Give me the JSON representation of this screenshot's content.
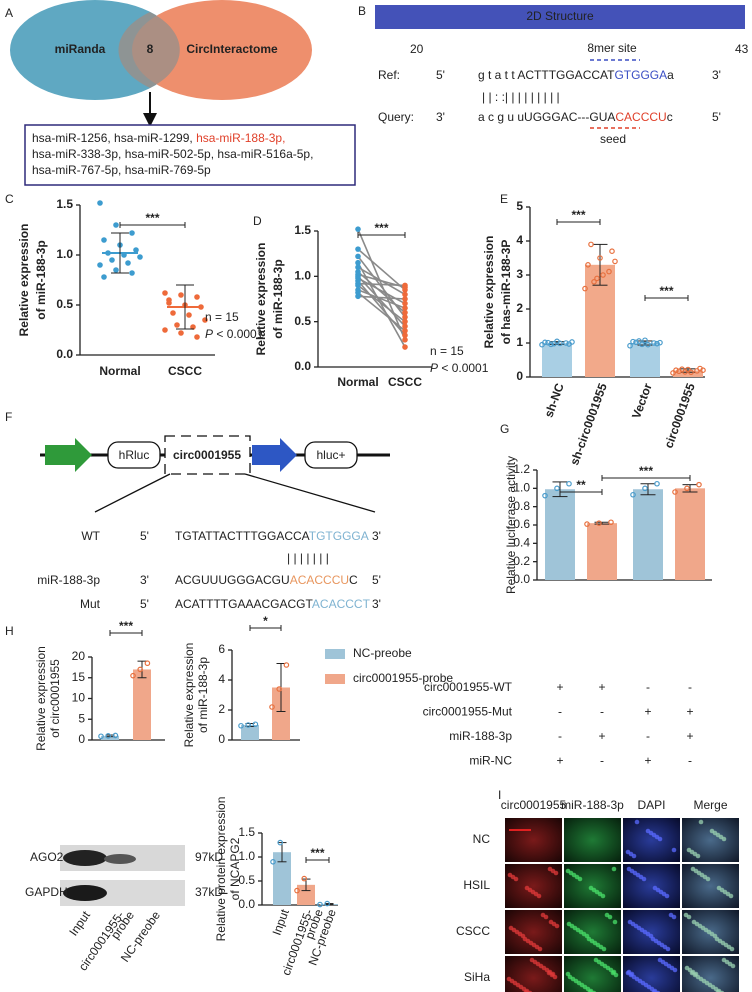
{
  "panel_labels": [
    "A",
    "B",
    "C",
    "D",
    "E",
    "F",
    "G",
    "H",
    "I"
  ],
  "panel_a": {
    "left": "miRanda",
    "overlap": "8",
    "right": "CircInteractome",
    "list": [
      [
        {
          "text": "hsa-miR-1256, hsa-miR-1299, "
        },
        {
          "text": "hsa-miR-188-3p,",
          "color": "#e0402a"
        }
      ],
      [
        {
          "text": "hsa-miR-338-3p, hsa-miR-502-5p, hsa-miR-516a-5p,"
        }
      ],
      [
        {
          "text": "hsa-miR-767-5p, hsa-miR-769-5p"
        }
      ]
    ]
  },
  "panel_b": {
    "title": "2D Structure",
    "start": "20",
    "end": "43",
    "site": "8mer site",
    "ref": {
      "label": "Ref:",
      "left": "5'",
      "right": "3'",
      "segments": [
        {
          "text": "g t a t t ACTTTGGACCAT"
        },
        {
          "text": "GTGGGA",
          "color": "#3b4fc4"
        },
        {
          "text": "a"
        }
      ]
    },
    "pairs": "|  |  :  :|          | | | | | | | |",
    "query": {
      "label": "Query:",
      "left": "3'",
      "right": "5'",
      "segments": [
        {
          "text": "a c g u uUGGGAC---GUA"
        },
        {
          "text": "CACCCU",
          "color": "#e0402a"
        },
        {
          "text": "c"
        }
      ]
    },
    "seed": "seed"
  },
  "panel_f": {
    "elements": [
      "hRluc",
      "circ0001955",
      "hluc+"
    ],
    "rows": [
      {
        "label": "WT",
        "left": "5'",
        "right": "3'",
        "segments": [
          {
            "text": "TGTATTACTTTGGACCA"
          },
          {
            "text": "TGTGGGA",
            "color": "#7fb3d1"
          }
        ]
      },
      {
        "label": "miR-188-3p",
        "left": "3'",
        "right": "5'",
        "segments": [
          {
            "text": "ACGUUUGGGACGU"
          },
          {
            "text": "ACACCCU",
            "color": "#e8965e"
          },
          {
            "text": "C"
          }
        ]
      },
      {
        "label": "Mut",
        "left": "5'",
        "right": "3'",
        "segments": [
          {
            "text": "ACATTTTGAAACGACGT"
          },
          {
            "text": "ACACCCT",
            "color": "#7fb3d1"
          }
        ]
      }
    ],
    "pairs": "| | | | | | |"
  },
  "panel_g_table": [
    {
      "label": "circ0001955-WT",
      "signs": [
        "+",
        "+",
        "-",
        "-"
      ]
    },
    {
      "label": "circ0001955-Mut",
      "signs": [
        "-",
        "-",
        "+",
        "+"
      ]
    },
    {
      "label": "miR-188-3p",
      "signs": [
        "-",
        "+",
        "-",
        "+"
      ]
    },
    {
      "label": "miR-NC",
      "signs": [
        "+",
        "-",
        "+",
        "-"
      ]
    }
  ],
  "panel_h_blot": {
    "bands": [
      "AGO2",
      "GAPDH"
    ],
    "sizes": [
      "97kD",
      "37kD"
    ],
    "lanes": [
      [
        "Input"
      ],
      [
        "circ0001955-",
        "probe"
      ],
      [
        "NC-preobe"
      ]
    ]
  },
  "panel_i": {
    "columns": [
      {
        "text": "circ0001955",
        "color": "#a8232a"
      },
      {
        "text": "miR-188-3p",
        "color": "#1f9a3c"
      },
      {
        "text": "DAPI",
        "color": "#2a3cb0"
      },
      {
        "text": "Merge",
        "color": "#5fa7d0"
      }
    ],
    "rows": [
      "NC",
      "HSIL",
      "CSCC",
      "SiHa"
    ]
  },
  "chart_data": [
    {
      "type": "dot",
      "ylabel": [
        "Relative expression",
        "of miR-188-3p"
      ],
      "categories": [
        "Normal",
        "CSCC"
      ],
      "colors": [
        "#3d9ccf",
        "#ee6a3a"
      ],
      "points": [
        [
          1.52,
          1.3,
          1.22,
          1.15,
          1.1,
          1.05,
          1.02,
          1.0,
          0.98,
          0.95,
          0.92,
          0.9,
          0.85,
          0.82,
          0.78
        ],
        [
          0.62,
          0.6,
          0.58,
          0.55,
          0.5,
          0.48,
          0.42,
          0.4,
          0.35,
          0.3,
          0.28,
          0.25,
          0.22,
          0.18,
          0.52
        ]
      ],
      "means": [
        1.02,
        0.48
      ],
      "errors": [
        0.2,
        0.22
      ],
      "ylim": [
        0,
        1.5
      ],
      "yticks": [
        {
          "value": 0,
          "label": "0.0"
        },
        {
          "value": 0.5,
          "label": "0.5"
        },
        {
          "value": 1,
          "label": "1.0"
        },
        {
          "value": 1.5,
          "label": "1.5"
        }
      ],
      "significance": [
        "***"
      ],
      "note": {
        "n": "n = 15",
        "p_symbol": "P",
        "p_text": " < 0.0001"
      }
    },
    {
      "type": "paired",
      "ylabel": [
        "Relative expression",
        "of miR-188-3p"
      ],
      "line_color": "#8a8a8a",
      "series": [
        {
          "name": "Normal",
          "color": "#3d9ccf",
          "values": [
            1.52,
            1.3,
            1.22,
            1.15,
            1.1,
            1.05,
            1.02,
            1.0,
            0.98,
            0.95,
            0.92,
            0.9,
            0.85,
            0.82,
            0.78
          ]
        },
        {
          "name": "CSCC",
          "color": "#ee6a3a",
          "values": [
            0.3,
            0.85,
            0.55,
            0.22,
            0.8,
            0.6,
            0.88,
            0.45,
            0.7,
            0.35,
            0.9,
            0.5,
            0.65,
            0.4,
            0.75
          ]
        }
      ],
      "ylim": [
        0,
        1.5
      ],
      "yticks": [
        {
          "value": 0,
          "label": "0.0"
        },
        {
          "value": 0.5,
          "label": "0.5"
        },
        {
          "value": 1,
          "label": "1.0"
        },
        {
          "value": 1.5,
          "label": "1.5"
        }
      ],
      "significance": [
        "***"
      ],
      "note": {
        "n": "n = 15",
        "p_symbol": "P",
        "p_text": " < 0.0001"
      }
    },
    {
      "type": "bar",
      "ylabel": [
        "Relative expression",
        "of has-miR-188-3P"
      ],
      "categories": [
        "sh-NC",
        "sh-circ0001955",
        "Vector",
        "circ0001955"
      ],
      "values": [
        1.0,
        3.3,
        1.0,
        0.19
      ],
      "errors": [
        0.04,
        0.6,
        0.06,
        0.05
      ],
      "colors": [
        "#a9cfe4",
        "#f2a98a",
        "#a9cfe4",
        "#f2a98a"
      ],
      "point_colors": [
        "#4a9ccc",
        "#e8703e",
        "#4a9ccc",
        "#e8703e"
      ],
      "points": [
        [
          0.95,
          0.98,
          1.0,
          1.02,
          1.05,
          0.97,
          1.01,
          0.99,
          1.03,
          0.96
        ],
        [
          2.6,
          2.9,
          3.1,
          3.3,
          3.5,
          3.7,
          3.9,
          3.0,
          3.4,
          2.8
        ],
        [
          0.92,
          0.96,
          1.0,
          1.04,
          1.08,
          0.98,
          1.02,
          0.95,
          1.01,
          1.06
        ],
        [
          0.12,
          0.15,
          0.18,
          0.2,
          0.22,
          0.25,
          0.17,
          0.14,
          0.2,
          0.23
        ]
      ],
      "ylim": [
        0,
        5
      ],
      "yticks": [
        0,
        1,
        2,
        3,
        4,
        5
      ],
      "significance": [
        "***",
        "***"
      ]
    },
    {
      "type": "bar",
      "ylabel": [
        "Relative luciferase activity"
      ],
      "values": [
        0.99,
        0.62,
        0.99,
        1.0
      ],
      "errors": [
        0.08,
        0.01,
        0.06,
        0.04
      ],
      "colors": [
        "#9fc4d8",
        "#f0a78a",
        "#9fc4d8",
        "#f0a78a"
      ],
      "point_colors": [
        "#4a9ccc",
        "#e8703e",
        "#4a9ccc",
        "#e8703e"
      ],
      "points": [
        [
          0.92,
          1.0,
          1.05
        ],
        [
          0.61,
          0.62,
          0.63
        ],
        [
          0.93,
          1.0,
          1.05
        ],
        [
          0.96,
          1.0,
          1.04
        ]
      ],
      "ylim": [
        0,
        1.2
      ],
      "yticks": [
        {
          "value": 0,
          "label": "0.0"
        },
        {
          "value": 0.2,
          "label": "0.2"
        },
        {
          "value": 0.4,
          "label": "0.4"
        },
        {
          "value": 0.6,
          "label": "0.6"
        },
        {
          "value": 0.8,
          "label": "0.8"
        },
        {
          "value": 1,
          "label": "1.0"
        },
        {
          "value": 1.2,
          "label": "1.2"
        }
      ],
      "significance": [
        "**",
        "***"
      ]
    },
    {
      "type": "bar",
      "ylabel": [
        "Relative expression",
        "of circ0001955"
      ],
      "values": [
        1,
        17
      ],
      "errors": [
        0.2,
        2
      ],
      "colors": [
        "#9fc4d8",
        "#f0a78a"
      ],
      "point_colors": [
        "#4a9ccc",
        "#e8703e"
      ],
      "points": [
        [
          0.9,
          1.0,
          1.1
        ],
        [
          15.5,
          17,
          18.5
        ]
      ],
      "ylim": [
        0,
        20
      ],
      "yticks": [
        0,
        5,
        10,
        15,
        20
      ],
      "significance": [
        "***"
      ]
    },
    {
      "type": "bar",
      "ylabel": [
        "Relative expression",
        "of miR-188-3p"
      ],
      "values": [
        1.0,
        3.5
      ],
      "errors": [
        0.1,
        1.6
      ],
      "colors": [
        "#9fc4d8",
        "#f0a78a"
      ],
      "point_colors": [
        "#4a9ccc",
        "#e8703e"
      ],
      "points": [
        [
          0.95,
          1.0,
          1.05
        ],
        [
          2.2,
          3.4,
          5.0
        ]
      ],
      "ylim": [
        0,
        6
      ],
      "yticks": [
        0,
        2,
        4,
        6
      ],
      "significance": [
        "*"
      ],
      "legend": [
        {
          "name": "NC-preobe",
          "color": "#9fc4d8"
        },
        {
          "name": "circ0001955-probe",
          "color": "#f0a78a"
        }
      ]
    },
    {
      "type": "bar",
      "ylabel": [
        "Relative protein expression",
        "of NCAPG2"
      ],
      "categories": [
        [
          "Input"
        ],
        [
          "circ0001955-",
          "probe"
        ],
        [
          "NC-preobe"
        ]
      ],
      "values": [
        1.1,
        0.42,
        0.02
      ],
      "errors": [
        0.2,
        0.12,
        0.01
      ],
      "colors": [
        "#9fc4d8",
        "#f0a78a",
        "#9fc4d8"
      ],
      "point_colors": [
        "#4a9ccc",
        "#e8703e",
        "#4a9ccc"
      ],
      "points": [
        [
          0.9,
          1.3
        ],
        [
          0.3,
          0.55
        ],
        [
          0.01,
          0.03
        ]
      ],
      "ylim": [
        0,
        1.5
      ],
      "yticks": [
        {
          "value": 0,
          "label": "0.0"
        },
        {
          "value": 0.5,
          "label": "0.5"
        },
        {
          "value": 1,
          "label": "1.0"
        },
        {
          "value": 1.5,
          "label": "1.5"
        }
      ],
      "significance": [
        "***"
      ]
    }
  ]
}
